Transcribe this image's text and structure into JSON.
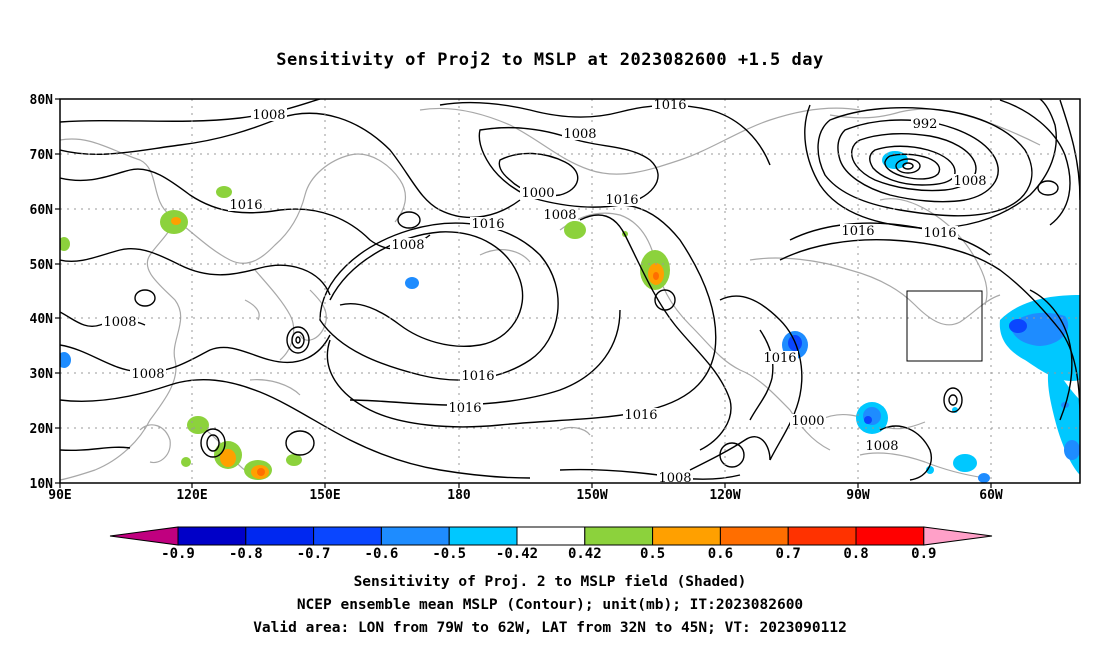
{
  "title": "Sensitivity of Proj2 to MSLP at 2023082600 +1.5 day",
  "map": {
    "lat_labels": [
      "80N",
      "70N",
      "60N",
      "50N",
      "40N",
      "30N",
      "20N",
      "10N"
    ],
    "lon_labels": [
      "90E",
      "120E",
      "150E",
      "180",
      "150W",
      "120W",
      "90W",
      "60W"
    ],
    "contour_labels": [
      "1008",
      "1016",
      "1008",
      "1016",
      "1000",
      "1008",
      "1008",
      "1016",
      "1016",
      "1008",
      "1008",
      "1016",
      "1016",
      "1016",
      "1008",
      "1016",
      "1000",
      "992",
      "1008",
      "1016",
      "1016",
      "1016",
      "1008"
    ],
    "valid_box": {
      "lon_range": [
        "79W",
        "62W"
      ],
      "lat_range": [
        "32N",
        "45N"
      ]
    }
  },
  "colorbar": {
    "tick_labels": [
      "-0.9",
      "-0.8",
      "-0.7",
      "-0.6",
      "-0.5",
      "-0.42",
      "0.42",
      "0.5",
      "0.6",
      "0.7",
      "0.8",
      "0.9"
    ],
    "colors": [
      "#c0007f",
      "#0000c8",
      "#0028f0",
      "#0a46ff",
      "#1e8cff",
      "#00c8ff",
      "#ffffff",
      "#8cd23c",
      "#ffa000",
      "#ff6e00",
      "#ff3200",
      "#ff0000",
      "#ffa0c8"
    ]
  },
  "captions": {
    "line1": "Sensitivity of Proj. 2 to MSLP field (Shaded)",
    "line2": "NCEP ensemble mean MSLP (Contour); unit(mb); IT:2023082600",
    "line3": "Valid area: LON from 79W to 62W, LAT from 32N to 45N; VT: 2023090112"
  }
}
